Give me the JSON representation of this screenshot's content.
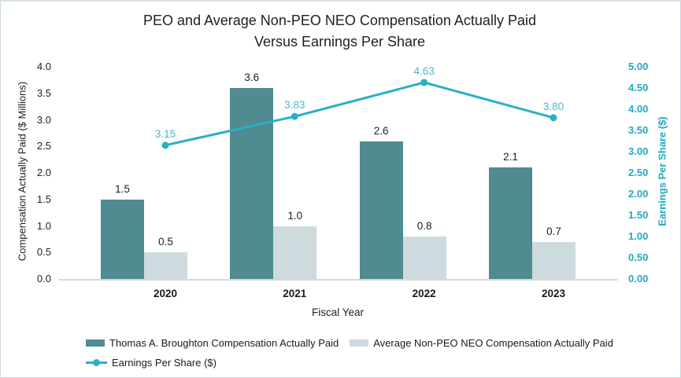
{
  "title": {
    "line1": "PEO and Average Non-PEO NEO Compensation Actually Paid",
    "line2": "Versus Earnings Per Share"
  },
  "chart_data": {
    "type": "combo: grouped bar + line",
    "categories": [
      "2020",
      "2021",
      "2022",
      "2023"
    ],
    "series": [
      {
        "name": "Thomas A. Broughton Compensation Actually Paid",
        "type": "bar",
        "axis": "left",
        "color": "#4F8B90",
        "values": [
          1.5,
          3.6,
          2.6,
          2.1
        ],
        "labels": [
          "1.5",
          "3.6",
          "2.6",
          "2.1"
        ]
      },
      {
        "name": "Average Non-PEO NEO Compensation Actually Paid",
        "type": "bar",
        "axis": "left",
        "color": "#CEDBDE",
        "values": [
          0.5,
          1.0,
          0.8,
          0.7
        ],
        "labels": [
          "0.5",
          "1.0",
          "0.8",
          "0.7"
        ]
      },
      {
        "name": "Earnings Per Share ($)",
        "type": "line",
        "axis": "right",
        "color": "#2AAFC7",
        "label_color": "#4AB6CE",
        "values": [
          3.15,
          3.83,
          4.63,
          3.8
        ],
        "labels": [
          "3.15",
          "3.83",
          "4.63",
          "3.80"
        ]
      }
    ],
    "xlabel": "Fiscal Year",
    "ylabel_left": "Compensation Actually Paid ($ Millions)",
    "ylabel_right": "Earnings Per Share ($)",
    "ylim_left": [
      0.0,
      4.0
    ],
    "ylim_right": [
      0.0,
      5.0
    ],
    "yticks_left": [
      "0.0",
      "0.5",
      "1.0",
      "1.5",
      "2.0",
      "2.5",
      "3.0",
      "3.5",
      "4.0"
    ],
    "yticks_right": [
      "0.00",
      "0.50",
      "1.00",
      "1.50",
      "2.00",
      "2.50",
      "3.00",
      "3.50",
      "4.00",
      "4.50",
      "5.00"
    ],
    "grid": false,
    "legend_position": "bottom-left"
  },
  "colors": {
    "right_axis_text": "#22A9C2",
    "axis_line": "#D9D9D9",
    "text": "#212121",
    "border": "#CCD8DD"
  }
}
